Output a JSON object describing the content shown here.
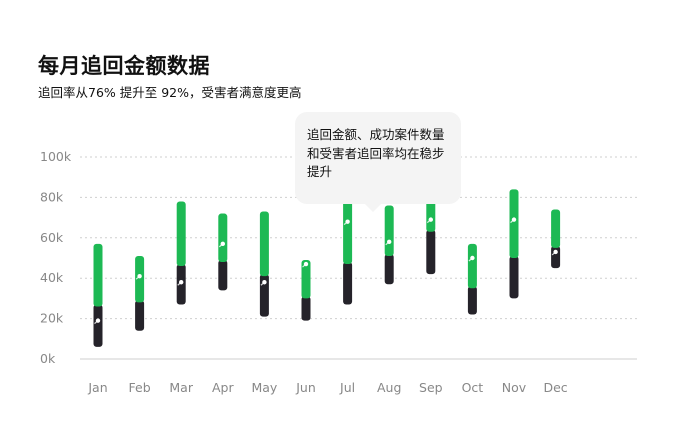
{
  "header": {
    "title": "每月追回金额数据",
    "subtitle": "追回率从76% 提升至 92%，受害者满意度更高"
  },
  "tooltip": {
    "text": "追回金额、成功案件数量和受害者追回率均在稳步提升"
  },
  "colors": {
    "green": "#1db954",
    "dark": "#25232a",
    "grid": "#cfcfcf",
    "axis_text": "#888888",
    "dot": "#ffffff"
  },
  "chart_data": {
    "type": "bar",
    "title": "每月追回金额数据",
    "categories": [
      "Jan",
      "Feb",
      "Mar",
      "Apr",
      "May",
      "Jun",
      "Jul",
      "Aug",
      "Sep",
      "Oct",
      "Nov",
      "Dec"
    ],
    "ylim": [
      0,
      100000
    ],
    "yticks": [
      0,
      20000,
      40000,
      60000,
      80000,
      100000
    ],
    "ytick_labels": [
      "0k",
      "20k",
      "40k",
      "60k",
      "80k",
      "100k"
    ],
    "grid": true,
    "bars": [
      {
        "low": 6000,
        "mid": 27000,
        "high": 57000
      },
      {
        "low": 14000,
        "mid": 29000,
        "high": 51000
      },
      {
        "low": 27000,
        "mid": 47000,
        "high": 78000
      },
      {
        "low": 34000,
        "mid": 49000,
        "high": 72000
      },
      {
        "low": 21000,
        "mid": 42000,
        "high": 73000
      },
      {
        "low": 19000,
        "mid": 31000,
        "high": 49000
      },
      {
        "low": 27000,
        "mid": 48000,
        "high": 79000
      },
      {
        "low": 37000,
        "mid": 52000,
        "high": 76000
      },
      {
        "low": 42000,
        "mid": 64000,
        "high": 96000
      },
      {
        "low": 22000,
        "mid": 36000,
        "high": 57000
      },
      {
        "low": 30000,
        "mid": 51000,
        "high": 84000
      },
      {
        "low": 45000,
        "mid": 56000,
        "high": 74000
      }
    ],
    "markers": [
      19000,
      41000,
      38000,
      57000,
      38000,
      47000,
      68000,
      58000,
      69000,
      50000,
      69000,
      53000
    ]
  }
}
